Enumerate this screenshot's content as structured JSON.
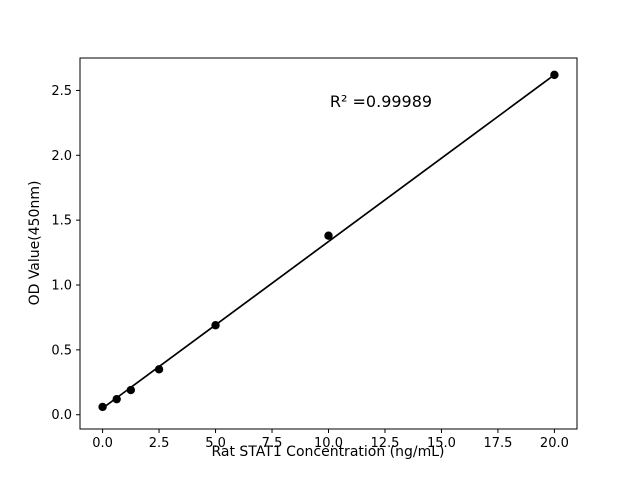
{
  "figure": {
    "background": "#ffffff"
  },
  "chart_data": {
    "type": "scatter",
    "title": "",
    "xlabel": "Rat STAT1 Concentration (ng/mL)",
    "ylabel": "OD Value(450nm)",
    "annotation": "R² =0.99989",
    "r_squared": 0.99989,
    "series": [
      {
        "name": "standard-curve-points",
        "x": [
          0,
          0.625,
          1.25,
          2.5,
          5,
          10,
          20
        ],
        "y": [
          0.06,
          0.12,
          0.19,
          0.35,
          0.69,
          1.38,
          2.62
        ]
      }
    ],
    "fit_line": {
      "x": [
        0,
        20
      ],
      "y": [
        0.05,
        2.62
      ]
    },
    "xticks": [
      0.0,
      2.5,
      5.0,
      7.5,
      10.0,
      12.5,
      15.0,
      17.5,
      20.0
    ],
    "xtick_labels": [
      "0.0",
      "2.5",
      "5.0",
      "7.5",
      "10.0",
      "12.5",
      "15.0",
      "17.5",
      "20.0"
    ],
    "yticks": [
      0.0,
      0.5,
      1.0,
      1.5,
      2.0,
      2.5
    ],
    "ytick_labels": [
      "0.0",
      "0.5",
      "1.0",
      "1.5",
      "2.0",
      "2.5"
    ],
    "xlim": [
      -1,
      21
    ],
    "ylim": [
      -0.11,
      2.75
    ],
    "grid": false,
    "legend": "none",
    "colors": {
      "marker": "#000000",
      "line": "#000000",
      "axis": "#000000",
      "text": "#000000"
    }
  }
}
